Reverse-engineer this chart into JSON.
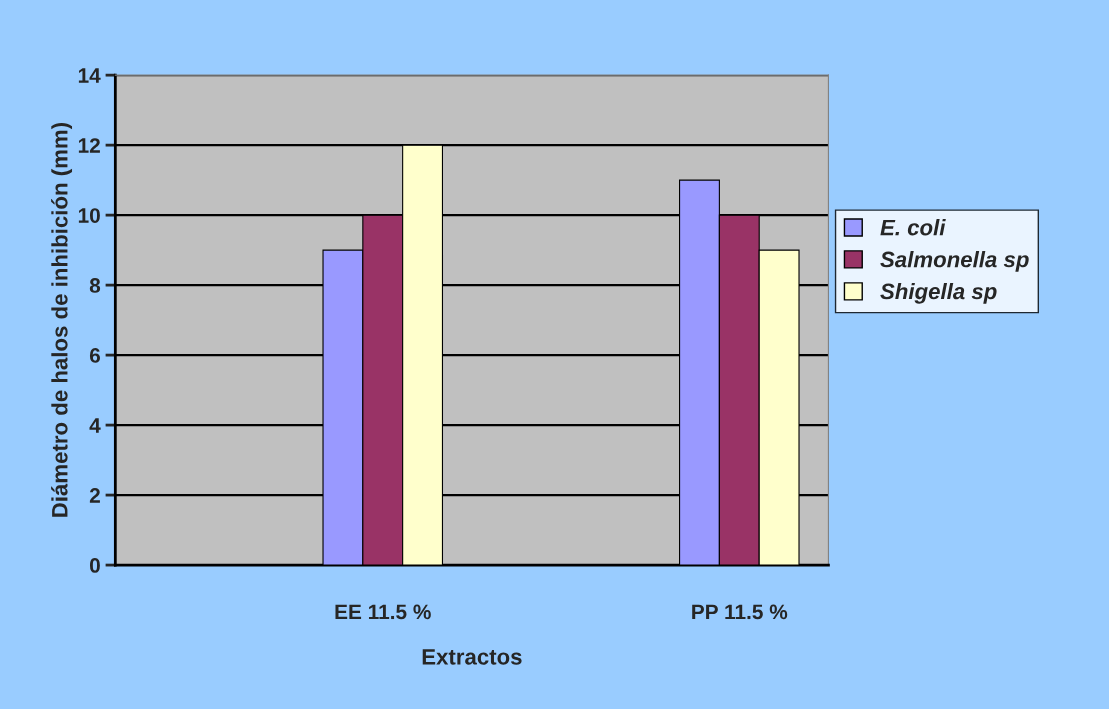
{
  "chart_data": {
    "type": "bar",
    "xlabel": "Extractos",
    "ylabel": "Diámetro de halos de inhibición (mm)",
    "categories": [
      null,
      "EE 11.5 %",
      null,
      "PP 11.5 %"
    ],
    "series": [
      {
        "name": "E. coli",
        "color": "#9999ff",
        "values": [
          null,
          9,
          null,
          11
        ]
      },
      {
        "name": "Salmonella sp",
        "color": "#993366",
        "values": [
          null,
          10,
          null,
          10
        ]
      },
      {
        "name": "Shigella sp",
        "color": "#ffffcc",
        "values": [
          null,
          12,
          null,
          9
        ]
      }
    ],
    "ylim": [
      0,
      14
    ],
    "yticks": [
      0,
      2,
      4,
      6,
      8,
      10,
      12,
      14
    ],
    "grid": "y",
    "legend": "right"
  }
}
